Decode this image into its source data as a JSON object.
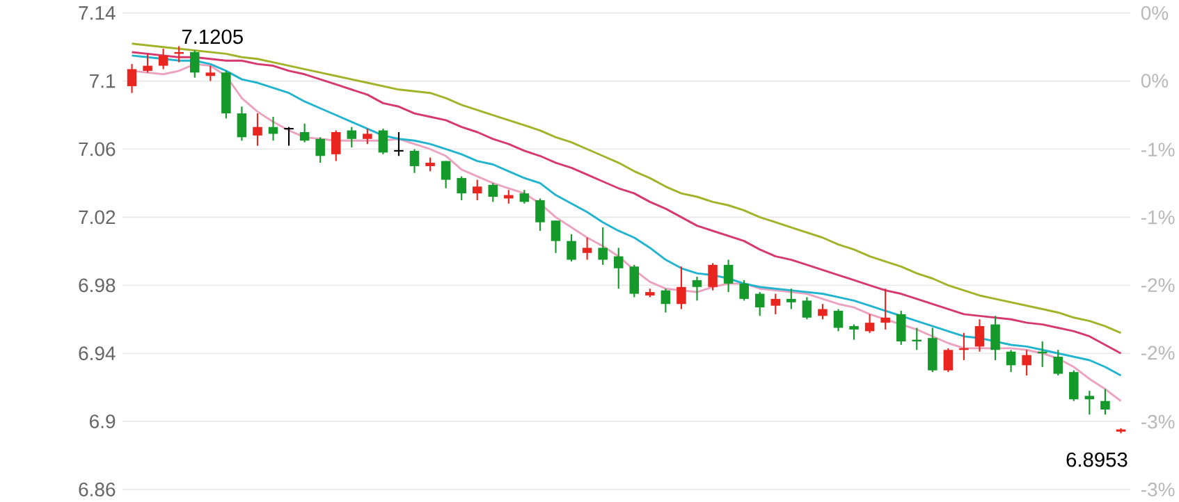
{
  "chart_data": {
    "type": "candlestick",
    "categories": [
      null,
      null,
      null,
      null,
      null,
      null,
      null,
      null,
      null,
      null,
      null,
      null,
      null,
      null,
      null,
      null,
      null,
      null,
      null,
      null,
      null,
      null,
      null,
      null,
      null,
      null,
      null,
      null,
      null,
      null,
      null,
      null,
      null,
      null,
      null,
      null,
      null,
      null,
      null,
      null,
      null,
      null,
      null,
      null,
      null,
      null,
      null,
      null,
      null,
      null,
      null,
      null,
      null,
      null,
      null,
      null,
      null,
      null,
      null,
      null,
      null,
      null,
      null,
      null
    ],
    "ohlc": [
      [
        7.097,
        7.11,
        7.093,
        7.107
      ],
      [
        7.106,
        7.116,
        7.105,
        7.109
      ],
      [
        7.109,
        7.119,
        7.107,
        7.115
      ],
      [
        7.116,
        7.1205,
        7.111,
        7.117
      ],
      [
        7.117,
        7.118,
        7.102,
        7.105
      ],
      [
        7.103,
        7.109,
        7.1,
        7.105
      ],
      [
        7.105,
        7.106,
        7.078,
        7.081
      ],
      [
        7.081,
        7.085,
        7.065,
        7.067
      ],
      [
        7.068,
        7.081,
        7.062,
        7.073
      ],
      [
        7.073,
        7.079,
        7.065,
        7.069
      ],
      [
        7.072,
        7.073,
        7.062,
        7.072
      ],
      [
        7.07,
        7.075,
        7.064,
        7.065
      ],
      [
        7.066,
        7.067,
        7.052,
        7.056
      ],
      [
        7.057,
        7.071,
        7.053,
        7.07
      ],
      [
        7.071,
        7.073,
        7.061,
        7.066
      ],
      [
        7.066,
        7.072,
        7.063,
        7.069
      ],
      [
        7.071,
        7.072,
        7.057,
        7.058
      ],
      [
        7.059,
        7.07,
        7.056,
        7.059
      ],
      [
        7.059,
        7.06,
        7.046,
        7.05
      ],
      [
        7.05,
        7.055,
        7.047,
        7.052
      ],
      [
        7.053,
        7.053,
        7.037,
        7.042
      ],
      [
        7.043,
        7.044,
        7.03,
        7.034
      ],
      [
        7.034,
        7.042,
        7.03,
        7.038
      ],
      [
        7.039,
        7.04,
        7.029,
        7.032
      ],
      [
        7.031,
        7.036,
        7.028,
        7.033
      ],
      [
        7.034,
        7.036,
        7.028,
        7.029
      ],
      [
        7.03,
        7.031,
        7.012,
        7.017
      ],
      [
        7.018,
        7.018,
        6.999,
        7.006
      ],
      [
        7.006,
        7.01,
        6.994,
        6.995
      ],
      [
        6.999,
        7.008,
        6.995,
        7.002
      ],
      [
        7.002,
        7.014,
        6.992,
        6.995
      ],
      [
        6.997,
        7.002,
        6.978,
        6.99
      ],
      [
        6.991,
        6.992,
        6.973,
        6.975
      ],
      [
        6.974,
        6.978,
        6.973,
        6.976
      ],
      [
        6.977,
        6.978,
        6.964,
        6.969
      ],
      [
        6.969,
        6.991,
        6.966,
        6.979
      ],
      [
        6.983,
        6.985,
        6.971,
        6.979
      ],
      [
        6.979,
        6.993,
        6.977,
        6.992
      ],
      [
        6.992,
        6.995,
        6.976,
        6.981
      ],
      [
        6.981,
        6.983,
        6.971,
        6.972
      ],
      [
        6.975,
        6.976,
        6.962,
        6.967
      ],
      [
        6.968,
        6.975,
        6.963,
        6.972
      ],
      [
        6.972,
        6.978,
        6.966,
        6.97
      ],
      [
        6.971,
        6.973,
        6.96,
        6.961
      ],
      [
        6.962,
        6.969,
        6.96,
        6.966
      ],
      [
        6.965,
        6.966,
        6.953,
        6.955
      ],
      [
        6.956,
        6.957,
        6.948,
        6.954
      ],
      [
        6.953,
        6.963,
        6.952,
        6.958
      ],
      [
        6.958,
        6.978,
        6.954,
        6.961
      ],
      [
        6.963,
        6.965,
        6.945,
        6.947
      ],
      [
        6.948,
        6.955,
        6.942,
        6.947
      ],
      [
        6.949,
        6.955,
        6.929,
        6.93
      ],
      [
        6.93,
        6.943,
        6.929,
        6.942
      ],
      [
        6.942,
        6.952,
        6.936,
        6.943
      ],
      [
        6.944,
        6.96,
        6.941,
        6.956
      ],
      [
        6.957,
        6.962,
        6.936,
        6.942
      ],
      [
        6.941,
        6.942,
        6.929,
        6.933
      ],
      [
        6.933,
        6.942,
        6.927,
        6.939
      ],
      [
        6.941,
        6.947,
        6.932,
        6.94
      ],
      [
        6.938,
        6.942,
        6.927,
        6.928
      ],
      [
        6.929,
        6.93,
        6.912,
        6.913
      ],
      [
        6.915,
        6.918,
        6.904,
        6.913
      ],
      [
        6.912,
        6.919,
        6.904,
        6.907
      ],
      [
        6.894,
        6.896,
        6.893,
        6.8953
      ]
    ],
    "colors": [
      "#e8251e",
      "#e8251e",
      "#e8251e",
      "#e8251e",
      "#14992a",
      "#e8251e",
      "#14992a",
      "#14992a",
      "#e8251e",
      "#14992a",
      "#000000",
      "#14992a",
      "#14992a",
      "#e8251e",
      "#14992a",
      "#e8251e",
      "#14992a",
      "#000000",
      "#14992a",
      "#e8251e",
      "#14992a",
      "#14992a",
      "#e8251e",
      "#14992a",
      "#e8251e",
      "#14992a",
      "#14992a",
      "#14992a",
      "#14992a",
      "#e8251e",
      "#14992a",
      "#14992a",
      "#14992a",
      "#e8251e",
      "#14992a",
      "#e8251e",
      "#14992a",
      "#e8251e",
      "#14992a",
      "#14992a",
      "#14992a",
      "#e8251e",
      "#14992a",
      "#14992a",
      "#e8251e",
      "#14992a",
      "#14992a",
      "#e8251e",
      "#e8251e",
      "#14992a",
      "#14992a",
      "#14992a",
      "#e8251e",
      "#e8251e",
      "#e8251e",
      "#14992a",
      "#14992a",
      "#e8251e",
      "#14992a",
      "#14992a",
      "#14992a",
      "#14992a",
      "#14992a",
      "#e8251e"
    ],
    "series": [
      {
        "type": "line",
        "color": "#eba3c0",
        "values": [
          7.106,
          7.105,
          7.104,
          7.106,
          7.11,
          7.109,
          7.103,
          7.09,
          7.082,
          7.076,
          7.071,
          7.067,
          7.066,
          7.065,
          7.065,
          7.065,
          7.065,
          7.066,
          7.063,
          7.06,
          7.056,
          7.048,
          7.044,
          7.04,
          7.037,
          7.034,
          7.028,
          7.02,
          7.014,
          7.008,
          7.003,
          6.997,
          6.989,
          6.982,
          6.978,
          6.977,
          6.976,
          6.979,
          6.981,
          6.981,
          6.978,
          6.977,
          6.976,
          6.975,
          6.972,
          6.969,
          6.967,
          6.963,
          6.96,
          6.957,
          6.954,
          6.95,
          6.946,
          6.943,
          6.943,
          6.943,
          6.943,
          6.942,
          6.94,
          6.937,
          6.932,
          6.925,
          6.919,
          6.912
        ]
      },
      {
        "type": "line",
        "color": "#22b4cf",
        "values": [
          7.115,
          7.114,
          7.113,
          7.112,
          7.112,
          7.11,
          7.106,
          7.101,
          7.099,
          7.096,
          7.093,
          7.088,
          7.084,
          7.08,
          7.076,
          7.072,
          7.068,
          7.066,
          7.065,
          7.063,
          7.06,
          7.057,
          7.053,
          7.051,
          7.047,
          7.043,
          7.04,
          7.033,
          7.028,
          7.023,
          7.017,
          7.012,
          7.008,
          7.002,
          6.995,
          6.99,
          6.987,
          6.986,
          6.984,
          6.981,
          6.979,
          6.978,
          6.977,
          6.976,
          6.975,
          6.973,
          6.971,
          6.968,
          6.965,
          6.962,
          6.959,
          6.956,
          6.953,
          6.95,
          6.949,
          6.947,
          6.945,
          6.944,
          6.942,
          6.94,
          6.938,
          6.936,
          6.932,
          6.927
        ]
      },
      {
        "type": "line",
        "color": "#d63a6c",
        "values": [
          7.117,
          7.116,
          7.115,
          7.114,
          7.114,
          7.113,
          7.112,
          7.112,
          7.11,
          7.109,
          7.106,
          7.104,
          7.101,
          7.098,
          7.095,
          7.092,
          7.087,
          7.085,
          7.081,
          7.079,
          7.077,
          7.073,
          7.07,
          7.066,
          7.063,
          7.059,
          7.056,
          7.052,
          7.049,
          7.045,
          7.041,
          7.037,
          7.034,
          7.029,
          7.025,
          7.02,
          7.015,
          7.012,
          7.009,
          7.006,
          7.001,
          6.997,
          6.995,
          6.992,
          6.989,
          6.986,
          6.983,
          6.98,
          6.977,
          6.975,
          6.972,
          6.969,
          6.966,
          6.963,
          6.962,
          6.961,
          6.96,
          6.958,
          6.957,
          6.955,
          6.953,
          6.95,
          6.945,
          6.94
        ]
      },
      {
        "type": "line",
        "color": "#a2b32a",
        "values": [
          7.122,
          7.121,
          7.12,
          7.119,
          7.118,
          7.117,
          7.116,
          7.114,
          7.113,
          7.111,
          7.109,
          7.107,
          7.105,
          7.103,
          7.101,
          7.099,
          7.097,
          7.095,
          7.094,
          7.093,
          7.09,
          7.086,
          7.083,
          7.08,
          7.077,
          7.074,
          7.071,
          7.067,
          7.064,
          7.06,
          7.056,
          7.052,
          7.047,
          7.043,
          7.038,
          7.034,
          7.032,
          7.029,
          7.027,
          7.024,
          7.02,
          7.017,
          7.014,
          7.011,
          7.008,
          7.004,
          7.001,
          6.997,
          6.994,
          6.991,
          6.987,
          6.984,
          6.98,
          6.977,
          6.974,
          6.972,
          6.97,
          6.968,
          6.966,
          6.964,
          6.961,
          6.959,
          6.956,
          6.952
        ]
      }
    ],
    "ylim": [
      6.86,
      7.14
    ],
    "yticks": [
      {
        "value": 6.86,
        "label": "6.86"
      },
      {
        "value": 6.9,
        "label": "6.9"
      },
      {
        "value": 6.94,
        "label": "6.94"
      },
      {
        "value": 6.98,
        "label": "6.98"
      },
      {
        "value": 7.02,
        "label": "7.02"
      },
      {
        "value": 7.06,
        "label": "7.06"
      },
      {
        "value": 7.1,
        "label": "7.1"
      },
      {
        "value": 7.14,
        "label": "7.14"
      }
    ],
    "y2lim": [
      -3.46,
      0.48
    ],
    "y2ticks": [
      {
        "value": -3.46,
        "label": "-3%"
      },
      {
        "value": -2.9,
        "label": "-3%"
      },
      {
        "value": -2.33,
        "label": "-2%"
      },
      {
        "value": -1.77,
        "label": "-2%"
      },
      {
        "value": -1.21,
        "label": "-1%"
      },
      {
        "value": -0.65,
        "label": "-1%"
      },
      {
        "value": -0.08,
        "label": "0%"
      },
      {
        "value": 0.48,
        "label": "0%"
      }
    ],
    "grid": "y",
    "annotations": [
      {
        "text": "7.1205",
        "y": 7.1205
      },
      "6.8953"
    ]
  }
}
